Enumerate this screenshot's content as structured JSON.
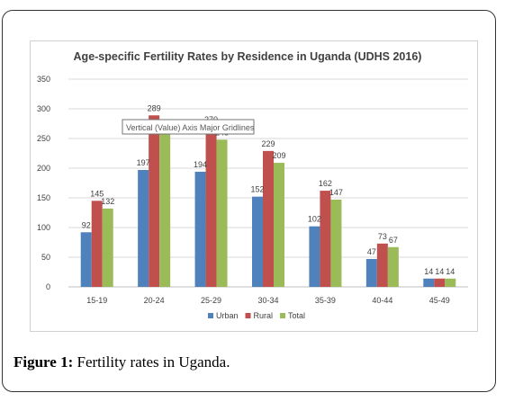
{
  "figure": {
    "label": "Figure 1:",
    "caption": "Fertility rates in Uganda."
  },
  "tooltip": "Vertical (Value) Axis Major Gridlines",
  "chart_data": {
    "type": "bar",
    "title": "Age-specific Fertility Rates by Residence in Uganda (UDHS 2016)",
    "xlabel": "",
    "ylabel": "",
    "categories": [
      "15-19",
      "20-24",
      "25-29",
      "30-34",
      "35-39",
      "40-44",
      "45-49"
    ],
    "ylim": [
      0,
      350
    ],
    "yticks": [
      "0",
      "50",
      "100",
      "150",
      "200",
      "250",
      "300",
      "350"
    ],
    "grid": true,
    "legend_position": "bottom",
    "series": [
      {
        "name": "Urban",
        "color": "#4f81bd",
        "values": [
          92,
          197,
          194,
          152,
          102,
          47,
          14
        ]
      },
      {
        "name": "Rural",
        "color": "#c0504d",
        "values": [
          145,
          289,
          270,
          229,
          162,
          73,
          14
        ]
      },
      {
        "name": "Total",
        "color": "#9bbb59",
        "values": [
          132,
          260,
          248,
          209,
          147,
          67,
          14
        ]
      }
    ]
  }
}
